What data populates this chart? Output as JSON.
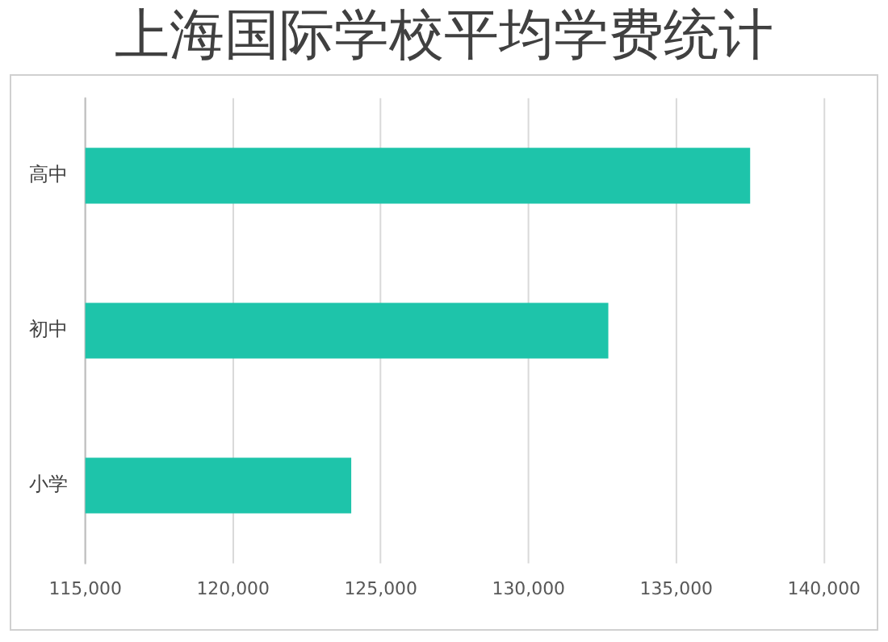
{
  "chart_data": {
    "type": "bar",
    "title": "上海国际学校平均学费统计",
    "orientation": "horizontal",
    "categories": [
      "高中",
      "初中",
      "小学"
    ],
    "values": [
      137500,
      132700,
      124000
    ],
    "color": "#1ec4aa",
    "xlim": [
      115000,
      140000
    ],
    "xticks": [
      {
        "value": 115000,
        "label": "115,000"
      },
      {
        "value": 120000,
        "label": "120,000"
      },
      {
        "value": 125000,
        "label": "125,000"
      },
      {
        "value": 130000,
        "label": "130,000"
      },
      {
        "value": 135000,
        "label": "135,000"
      },
      {
        "value": 140000,
        "label": "140,000"
      }
    ],
    "grid": "x",
    "legend": false
  }
}
